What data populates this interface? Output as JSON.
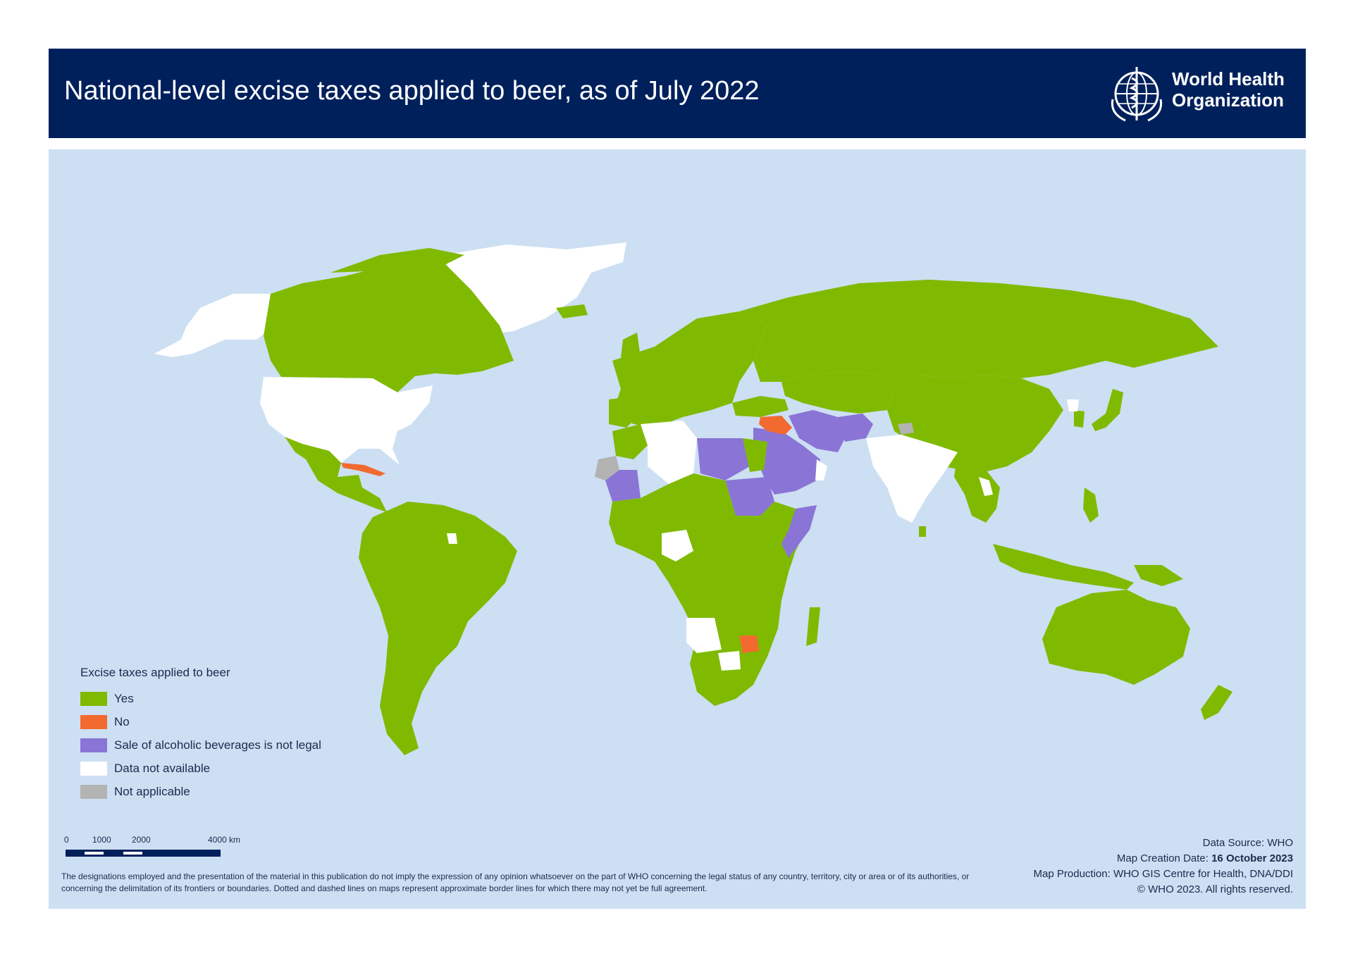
{
  "header": {
    "title": "National-level excise taxes applied to beer, as of July 2022",
    "logo_line1": "World Health",
    "logo_line2": "Organization"
  },
  "legend": {
    "title": "Excise taxes applied to beer",
    "items": [
      {
        "label": "Yes",
        "color": "#7fba00"
      },
      {
        "label": "No",
        "color": "#f26a2f"
      },
      {
        "label": "Sale of alcoholic beverages is not legal",
        "color": "#8a74d6"
      },
      {
        "label": "Data not available",
        "color": "#ffffff"
      },
      {
        "label": "Not applicable",
        "color": "#b3b3b3"
      }
    ]
  },
  "scale": {
    "ticks": [
      "0",
      "1000",
      "2000",
      "4000 km"
    ]
  },
  "credits": {
    "source": "Data Source: WHO",
    "creation_label": "Map Creation Date: ",
    "creation_date": "16 October 2023",
    "production": "Map Production: WHO GIS Centre for Health, DNA/DDI",
    "copyright": "© WHO 2023. All rights reserved."
  },
  "disclaimer": "The designations employed and the presentation of the material in this publication do not imply the expression of any opinion whatsoever on the part of WHO concerning the legal status of any country, territory, city or area or of its authorities, or concerning the delimitation of its frontiers or boundaries. Dotted and dashed lines on maps represent approximate border lines for which there may not yet be full agreement.",
  "colors": {
    "ocean": "#cddff3",
    "header": "#00205c",
    "yes": "#7fba00",
    "no": "#f26a2f",
    "not_legal": "#8a74d6",
    "no_data": "#ffffff",
    "not_applicable": "#b3b3b3"
  }
}
